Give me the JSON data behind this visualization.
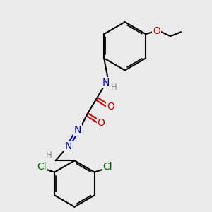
{
  "bg_color": "#ebebeb",
  "atom_colors": {
    "C": "#000000",
    "N": "#0000cc",
    "O": "#cc0000",
    "Cl": "#006600",
    "H": "#888888"
  },
  "bond_color": "#000000",
  "bond_width": 1.5,
  "font_size_atom": 10,
  "font_size_small": 8.5,
  "font_size_label": 9
}
